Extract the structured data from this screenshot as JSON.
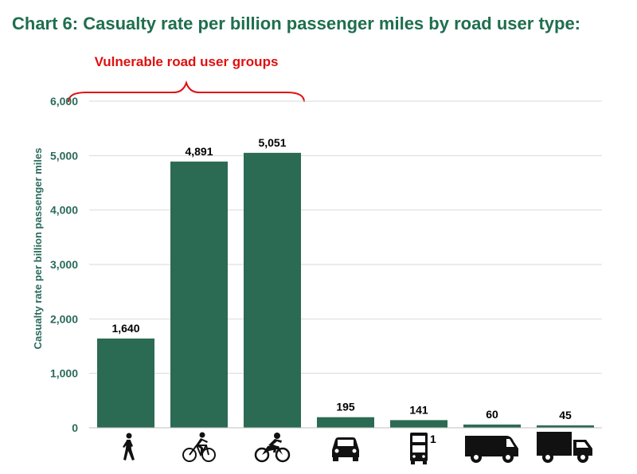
{
  "colors": {
    "title": "#1f6e4e",
    "axis_text": "#2a6b5b",
    "bar": "#2b6a53",
    "annotation": "#e01010",
    "grid": "#d9d9d9",
    "icon": "#111111"
  },
  "chart_data": {
    "type": "bar",
    "title": "Chart 6:  Casualty rate per billion passenger miles by road user type:",
    "xlabel": "",
    "ylabel": "Casualty rate per billion passenger miles",
    "ylim": [
      0,
      6000
    ],
    "yticks": [
      0,
      1000,
      2000,
      3000,
      4000,
      5000,
      6000
    ],
    "ytick_labels": [
      "0",
      "1,000",
      "2,000",
      "3,000",
      "4,000",
      "5,000",
      "6,000"
    ],
    "grid": true,
    "categories": [
      "Pedestrian",
      "Pedal cyclist",
      "Motorcyclist",
      "Car",
      "Bus",
      "Van",
      "Goods vehicle"
    ],
    "category_icons": [
      "pedestrian-icon",
      "bicycle-icon",
      "motorcycle-icon",
      "car-icon",
      "bus-icon",
      "van-icon",
      "truck-icon"
    ],
    "values": [
      1640,
      4891,
      5051,
      195,
      141,
      60,
      45
    ],
    "data_labels": [
      "1,640",
      "4,891",
      "5,051",
      "195",
      "141",
      "60",
      "45"
    ],
    "annotation": {
      "text": "Vulnerable road user groups",
      "spans_categories": [
        0,
        2
      ]
    },
    "footnote_marker": "1"
  }
}
